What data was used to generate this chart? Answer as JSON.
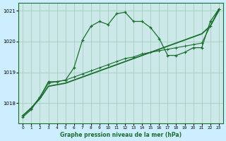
{
  "title": "Graphe pression niveau de la mer (hPa)",
  "bg_color": "#cceeff",
  "plot_bg_color": "#cce8e8",
  "grid_color": "#99ccbb",
  "line_color": "#1a6e2e",
  "x_ticks": [
    0,
    1,
    2,
    3,
    4,
    5,
    6,
    7,
    8,
    9,
    10,
    11,
    12,
    13,
    14,
    15,
    16,
    17,
    18,
    19,
    20,
    21,
    22,
    23
  ],
  "ylim": [
    1017.35,
    1021.25
  ],
  "yticks": [
    1018,
    1019,
    1020,
    1021
  ],
  "series1": [
    1017.55,
    1017.8,
    1018.2,
    1018.7,
    1018.7,
    1018.75,
    1019.15,
    1020.05,
    1020.5,
    1020.65,
    1020.55,
    1020.9,
    1020.95,
    1020.65,
    1020.65,
    1020.45,
    1020.1,
    1019.55,
    1019.55,
    1019.65,
    1019.8,
    1019.8,
    1020.65,
    1021.05
  ],
  "series2": [
    1017.6,
    1017.85,
    1018.2,
    1018.65,
    1018.7,
    1018.75,
    1018.85,
    1018.95,
    1019.05,
    1019.15,
    1019.25,
    1019.35,
    1019.45,
    1019.5,
    1019.6,
    1019.65,
    1019.7,
    1019.75,
    1019.8,
    1019.85,
    1019.9,
    1019.95,
    1020.5,
    1021.05
  ],
  "series3": [
    1017.6,
    1017.85,
    1018.15,
    1018.55,
    1018.6,
    1018.65,
    1018.75,
    1018.85,
    1018.95,
    1019.05,
    1019.15,
    1019.25,
    1019.35,
    1019.45,
    1019.55,
    1019.65,
    1019.75,
    1019.85,
    1019.95,
    1020.05,
    1020.15,
    1020.25,
    1020.5,
    1021.0
  ]
}
